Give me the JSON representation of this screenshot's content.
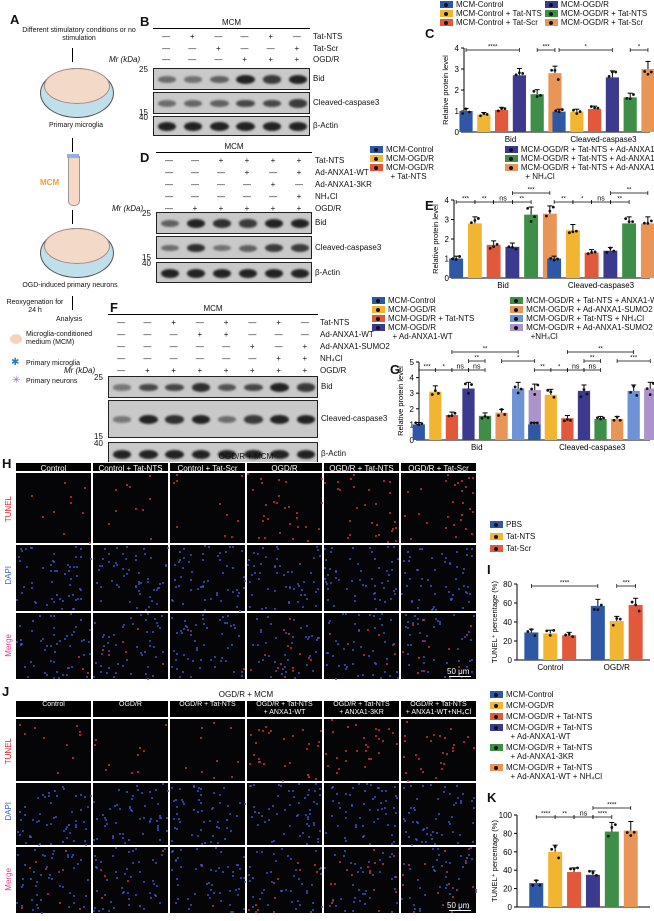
{
  "panels": {
    "A": "A",
    "B": "B",
    "C": "C",
    "D": "D",
    "E": "E",
    "F": "F",
    "G": "G",
    "H": "H",
    "I": "I",
    "J": "J",
    "K": "K"
  },
  "schematic": {
    "step1": "Different stimulatory conditions or no stimulation",
    "microglia": "Primary microglia",
    "mcm": "MCM",
    "neurons": "OGD-induced primary neurons",
    "reox": "Reoxygenation for 24 h",
    "analysis": "Analysis",
    "legend": [
      {
        "label": "Microglia-conditioned medium (MCM)",
        "icon": "mcm-drop-icon"
      },
      {
        "label": "Primary microglia",
        "icon": "microglia-icon"
      },
      {
        "label": "Primary neurons",
        "icon": "neuron-icon"
      }
    ]
  },
  "blots": {
    "B": {
      "header": "MCM",
      "mr": "Mr (kDa)",
      "rows": [
        {
          "label": "Tat-NTS",
          "v": [
            "—",
            "+",
            "—",
            "—",
            "+",
            "—"
          ]
        },
        {
          "label": "Tat-Scr",
          "v": [
            "—",
            "—",
            "+",
            "—",
            "—",
            "+"
          ]
        },
        {
          "label": "OGD/R",
          "v": [
            "—",
            "—",
            "—",
            "+",
            "+",
            "+"
          ]
        }
      ],
      "panels": [
        {
          "label": "Bid",
          "marker": "25"
        },
        {
          "label": "Cleaved-caspase3",
          "marker": "15"
        },
        {
          "label": "β-Actin",
          "marker": "40"
        }
      ]
    },
    "D": {
      "header": "MCM",
      "mr": "Mr (kDa)",
      "rows": [
        {
          "label": "Tat-NTS",
          "v": [
            "—",
            "—",
            "+",
            "+",
            "+",
            "+"
          ]
        },
        {
          "label": "Ad-ANXA1-WT",
          "v": [
            "—",
            "—",
            "—",
            "+",
            "—",
            "+"
          ]
        },
        {
          "label": "Ad-ANXA1-3KR",
          "v": [
            "—",
            "—",
            "—",
            "—",
            "+",
            "—"
          ]
        },
        {
          "label": "NH₄Cl",
          "v": [
            "—",
            "—",
            "—",
            "—",
            "—",
            "+"
          ]
        },
        {
          "label": "OGD/R",
          "v": [
            "—",
            "+",
            "+",
            "+",
            "+",
            "+"
          ]
        }
      ],
      "panels": [
        {
          "label": "Bid",
          "marker": "25"
        },
        {
          "label": "Cleaved-caspase3",
          "marker": "15"
        },
        {
          "label": "β-Actin",
          "marker": "40"
        }
      ]
    },
    "F": {
      "header": "MCM",
      "mr": "Mr (kDa)",
      "rows": [
        {
          "label": "Tat-NTS",
          "v": [
            "—",
            "—",
            "+",
            "—",
            "+",
            "—",
            "+",
            "—"
          ]
        },
        {
          "label": "Ad-ANXA1-WT",
          "v": [
            "—",
            "—",
            "—",
            "+",
            "+",
            "—",
            "—",
            "—"
          ]
        },
        {
          "label": "Ad-ANXA1-SUMO2",
          "v": [
            "—",
            "—",
            "—",
            "—",
            "—",
            "+",
            "—",
            "+"
          ]
        },
        {
          "label": "NH₄Cl",
          "v": [
            "—",
            "—",
            "—",
            "—",
            "—",
            "—",
            "+",
            "+"
          ]
        },
        {
          "label": "OGD/R",
          "v": [
            "—",
            "+",
            "+",
            "+",
            "+",
            "+",
            "+",
            "+"
          ]
        }
      ],
      "panels": [
        {
          "label": "Bid",
          "marker": "25"
        },
        {
          "label": "Cleaved-caspase3",
          "marker": "15"
        },
        {
          "label": "β-Actin",
          "marker": "40"
        }
      ]
    }
  },
  "microscopy": {
    "H": {
      "header": "OGD/R + MCM",
      "cols": [
        "Control",
        "Control + Tat-NTS",
        "Control + Tat-Scr",
        "OGD/R",
        "OGD/R + Tat-NTS",
        "OGD/R + Tat-Scr"
      ],
      "rows": [
        "TUNEL",
        "DAPI",
        "Merge"
      ],
      "scale": "50 μm"
    },
    "J": {
      "header": "OGD/R + MCM",
      "cols": [
        "Control",
        "OGD/R",
        "OGD/R + Tat-NTS",
        "OGD/R + Tat-NTS\n+ ANXA1-WT",
        "OGD/R + Tat-NTS\n+ ANXA1-3KR",
        "OGD/R + Tat-NTS\n+ ANXA1-WT+NH₄Cl"
      ],
      "rows": [
        "TUNEL",
        "DAPI",
        "Merge"
      ],
      "scale": "50 μm"
    }
  },
  "colors": {
    "blue": "#2e58a6",
    "yellow": "#f2b531",
    "red": "#e2583b",
    "indigo": "#3c3a8e",
    "green": "#3e8e48",
    "orange": "#e99556",
    "lightblue": "#6d92d6",
    "lavender": "#ab93cc"
  },
  "chart_data": [
    {
      "id": "C",
      "type": "bar",
      "ylabel": "Relative protein level",
      "ylim": [
        0,
        4
      ],
      "yticks": [
        0,
        1,
        2,
        3,
        4
      ],
      "categories": [
        "Bid",
        "Cleaved-caspase3"
      ],
      "series": [
        {
          "name": "MCM-Control",
          "color": "#2e58a6",
          "values": [
            1,
            0.97
          ]
        },
        {
          "name": "MCM-Control + Tat-NTS",
          "color": "#f2b531",
          "values": [
            0.83,
            0.97
          ]
        },
        {
          "name": "MCM-Control + Tat-Scr",
          "color": "#e2583b",
          "values": [
            1.05,
            1.1
          ]
        },
        {
          "name": "MCM-OGD/R",
          "color": "#3c3a8e",
          "values": [
            2.7,
            2.6
          ]
        },
        {
          "name": "MCM-OGD/R + Tat-NTS",
          "color": "#3e8e48",
          "values": [
            1.8,
            1.65
          ]
        },
        {
          "name": "MCM-OGD/R + Tat-Scr",
          "color": "#e99556",
          "values": [
            2.8,
            3.0
          ]
        }
      ],
      "significance": [
        {
          "from": 0,
          "to": 3,
          "label": "****",
          "level": 0
        },
        {
          "from": 4,
          "to": 5,
          "label": "***",
          "level": 0
        },
        {
          "from": 6,
          "to": 9,
          "label": "*",
          "level": 0
        },
        {
          "from": 10,
          "to": 11,
          "label": "*",
          "level": 0
        }
      ]
    },
    {
      "id": "E",
      "type": "bar",
      "ylabel": "Relative protein level",
      "ylim": [
        0,
        4
      ],
      "yticks": [
        0,
        1,
        2,
        3,
        4
      ],
      "categories": [
        "Bid",
        "Cleaved-caspase3"
      ],
      "series": [
        {
          "name": "MCM-Control",
          "color": "#2e58a6",
          "values": [
            1,
            1
          ]
        },
        {
          "name": "MCM-OGD/R",
          "color": "#f2b531",
          "values": [
            2.8,
            2.45
          ]
        },
        {
          "name": "MCM-OGD/R\n  + Tat-NTS",
          "color": "#e2583b",
          "values": [
            1.7,
            1.3
          ]
        },
        {
          "name": "MCM-OGD/R + Tat-NTS + Ad-ANXA1-WT",
          "color": "#3c3a8e",
          "values": [
            1.6,
            1.4
          ]
        },
        {
          "name": "MCM-OGD/R + Tat-NTS + Ad-ANXA1-3KR",
          "color": "#3e8e48",
          "values": [
            3.25,
            2.8
          ]
        },
        {
          "name": "MCM-OGD/R + Tat-NTS + Ad-ANXA1-WT\n  + NH₄Cl",
          "color": "#e99556",
          "values": [
            3.3,
            2.8
          ]
        }
      ],
      "significance": [
        {
          "from": 0,
          "to": 1,
          "label": "***",
          "level": 0
        },
        {
          "from": 1,
          "to": 2,
          "label": "**",
          "level": 0
        },
        {
          "from": 2,
          "to": 3,
          "label": "ns",
          "level": 0
        },
        {
          "from": 3,
          "to": 4,
          "label": "**",
          "level": 0
        },
        {
          "from": 3,
          "to": 5,
          "label": "***",
          "level": 1
        },
        {
          "from": 6,
          "to": 7,
          "label": "**",
          "level": 0
        },
        {
          "from": 7,
          "to": 8,
          "label": "*",
          "level": 0
        },
        {
          "from": 8,
          "to": 9,
          "label": "ns",
          "level": 0
        },
        {
          "from": 9,
          "to": 10,
          "label": "**",
          "level": 0
        },
        {
          "from": 9,
          "to": 11,
          "label": "**",
          "level": 1
        }
      ]
    },
    {
      "id": "G",
      "type": "bar",
      "ylabel": "Relative protein level",
      "ylim": [
        0,
        5
      ],
      "yticks": [
        0,
        1,
        2,
        3,
        4,
        5
      ],
      "categories": [
        "Bid",
        "Cleaved-caspase3"
      ],
      "series": [
        {
          "name": "MCM-Control",
          "color": "#2e58a6",
          "values": [
            1,
            1
          ]
        },
        {
          "name": "MCM-OGD/R",
          "color": "#f2b531",
          "values": [
            3.1,
            2.9
          ]
        },
        {
          "name": "MCM-OGD/R + Tat-NTS",
          "color": "#e2583b",
          "values": [
            1.6,
            1.4
          ]
        },
        {
          "name": "MCM-OGD/R\n  + Ad-ANXA1-WT",
          "color": "#3c3a8e",
          "values": [
            3.3,
            3.15
          ]
        },
        {
          "name": "MCM-OGD/R + Tat-NTS + ANXA1-WT",
          "color": "#3e8e48",
          "values": [
            1.55,
            1.35
          ]
        },
        {
          "name": "MCM-OGD/R + Ad-ANXA1-SUMO2",
          "color": "#e99556",
          "values": [
            1.75,
            1.35
          ]
        },
        {
          "name": "MCM-OGD/R + Tat-NTS + NH₄Cl",
          "color": "#6d92d6",
          "values": [
            3.3,
            3.15
          ]
        },
        {
          "name": "MCM-OGD/R + Ad-ANXA1-SUMO2\n  +NH₄Cl",
          "color": "#ab93cc",
          "values": [
            3.2,
            3.3
          ]
        }
      ],
      "significance": [
        {
          "from": 0,
          "to": 1,
          "label": "***",
          "level": 0
        },
        {
          "from": 1,
          "to": 2,
          "label": "*",
          "level": 0
        },
        {
          "from": 2,
          "to": 3,
          "label": "ns",
          "level": 0
        },
        {
          "from": 3,
          "to": 4,
          "label": "ns",
          "level": 0
        },
        {
          "from": 3,
          "to": 4,
          "label": "**",
          "level": 1
        },
        {
          "from": 5,
          "to": 7,
          "label": "*",
          "level": 1
        },
        {
          "from": 2,
          "to": 6,
          "label": "**",
          "level": 2
        },
        {
          "from": 8,
          "to": 9,
          "label": "**",
          "level": 0
        },
        {
          "from": 9,
          "to": 10,
          "label": "*",
          "level": 0
        },
        {
          "from": 10,
          "to": 11,
          "label": "ns",
          "level": 0
        },
        {
          "from": 11,
          "to": 12,
          "label": "ns",
          "level": 0
        },
        {
          "from": 11,
          "to": 12,
          "label": "**",
          "level": 1
        },
        {
          "from": 13,
          "to": 15,
          "label": "***",
          "level": 1
        },
        {
          "from": 10,
          "to": 14,
          "label": "**",
          "level": 2
        }
      ]
    },
    {
      "id": "I",
      "type": "bar",
      "ylabel": "TUNEL⁺ percentage (%)",
      "ylim": [
        0,
        80
      ],
      "yticks": [
        0,
        20,
        40,
        60,
        80
      ],
      "categories": [
        "Control",
        "OGD/R"
      ],
      "series": [
        {
          "name": "PBS",
          "color": "#2e58a6",
          "values": [
            29,
            57
          ]
        },
        {
          "name": "Tat-NTS",
          "color": "#f2b531",
          "values": [
            28,
            41
          ]
        },
        {
          "name": "Tat-Scr",
          "color": "#e2583b",
          "values": [
            26,
            58
          ]
        }
      ],
      "significance": [
        {
          "from": 0,
          "to": 3,
          "label": "****",
          "level": 0
        },
        {
          "from": 4,
          "to": 5,
          "label": "***",
          "level": 0
        }
      ]
    },
    {
      "id": "K",
      "type": "bar",
      "ylabel": "TUNEL⁺ percentage (%)",
      "ylim": [
        0,
        100
      ],
      "yticks": [
        0,
        20,
        40,
        60,
        80,
        100
      ],
      "categories": [
        ""
      ],
      "series": [
        {
          "name": "MCM-Control",
          "color": "#2e58a6",
          "values": [
            26
          ]
        },
        {
          "name": "MCM-OGD/R",
          "color": "#f2b531",
          "values": [
            60
          ]
        },
        {
          "name": "MCM-OGD/R + Tat-NTS",
          "color": "#e2583b",
          "values": [
            38
          ]
        },
        {
          "name": "MCM-OGD/R + Tat-NTS\n  + Ad-ANXA1-WT",
          "color": "#3c3a8e",
          "values": [
            35
          ]
        },
        {
          "name": "MCM-OGD/R + Tat-NTS\n  + Ad-ANXA1-3KR",
          "color": "#3e8e48",
          "values": [
            82
          ]
        },
        {
          "name": "MCM-OGD/R + Tat-NTS\n  + Ad-ANXA1-WT + NH₄Cl",
          "color": "#e99556",
          "values": [
            83
          ]
        }
      ],
      "significance": [
        {
          "from": 0,
          "to": 1,
          "label": "****",
          "level": 0
        },
        {
          "from": 1,
          "to": 2,
          "label": "**",
          "level": 0
        },
        {
          "from": 2,
          "to": 3,
          "label": "ns",
          "level": 0
        },
        {
          "from": 3,
          "to": 4,
          "label": "****",
          "level": 0
        },
        {
          "from": 3,
          "to": 5,
          "label": "****",
          "level": 1
        }
      ]
    }
  ]
}
